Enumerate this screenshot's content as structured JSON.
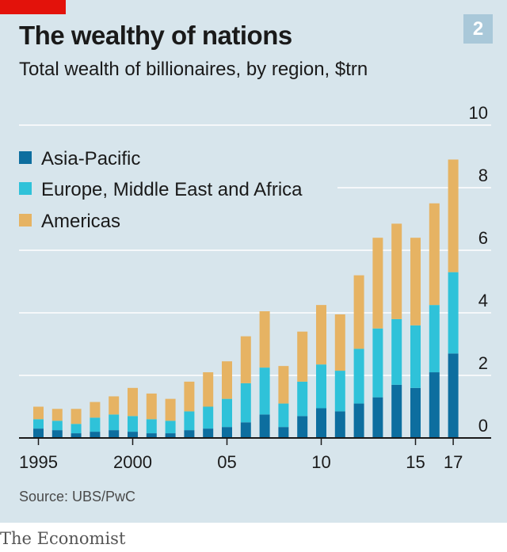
{
  "header": {
    "title": "The wealthy of nations",
    "subtitle": "Total wealth of billionaires, by region, $trn",
    "chart_number": "2"
  },
  "footer": {
    "source": "Source: UBS/PwC",
    "publisher": "The Economist"
  },
  "colors": {
    "background": "#d7e5ec",
    "accent": "#e3120b",
    "asia_pacific": "#0d6e9f",
    "emea": "#2fc2d9",
    "americas": "#e6b363",
    "gridline": "#ffffff",
    "baseline": "#1a1a1a"
  },
  "chart_data": {
    "type": "bar",
    "stacked": true,
    "title": "The wealthy of nations",
    "subtitle": "Total wealth of billionaires, by region, $trn",
    "x": [
      1995,
      1996,
      1997,
      1998,
      1999,
      2000,
      2001,
      2002,
      2003,
      2004,
      2005,
      2006,
      2007,
      2008,
      2009,
      2010,
      2011,
      2012,
      2013,
      2014,
      2015,
      2016,
      2017
    ],
    "x_tick_labels": [
      {
        "year": 1995,
        "label": "1995"
      },
      {
        "year": 2000,
        "label": "2000"
      },
      {
        "year": 2005,
        "label": "05"
      },
      {
        "year": 2010,
        "label": "10"
      },
      {
        "year": 2015,
        "label": "15"
      },
      {
        "year": 2017,
        "label": "17"
      }
    ],
    "series": [
      {
        "name": "Asia-Pacific",
        "color": "#0d6e9f",
        "values": [
          0.3,
          0.25,
          0.15,
          0.2,
          0.25,
          0.2,
          0.15,
          0.15,
          0.25,
          0.3,
          0.35,
          0.5,
          0.75,
          0.35,
          0.7,
          0.95,
          0.85,
          1.1,
          1.3,
          1.7,
          1.6,
          2.1,
          2.7
        ]
      },
      {
        "name": "Europe, Middle East and Africa",
        "color": "#2fc2d9",
        "values": [
          0.3,
          0.3,
          0.3,
          0.45,
          0.5,
          0.5,
          0.45,
          0.4,
          0.6,
          0.7,
          0.9,
          1.25,
          1.5,
          0.75,
          1.1,
          1.4,
          1.3,
          1.75,
          2.2,
          2.1,
          2.0,
          2.15,
          2.6
        ]
      },
      {
        "name": "Americas",
        "color": "#e6b363",
        "values": [
          0.4,
          0.38,
          0.48,
          0.5,
          0.58,
          0.9,
          0.82,
          0.7,
          0.95,
          1.1,
          1.2,
          1.5,
          1.8,
          1.2,
          1.6,
          1.9,
          1.8,
          2.35,
          2.9,
          3.05,
          2.8,
          3.25,
          3.6
        ]
      }
    ],
    "ylim": [
      0,
      10
    ],
    "y_ticks": [
      0,
      2,
      4,
      6,
      8,
      10
    ],
    "y_axis_position": "right",
    "legend": [
      "Asia-Pacific",
      "Europe, Middle East and Africa",
      "Americas"
    ],
    "legend_position": "top-left",
    "grid": true
  }
}
